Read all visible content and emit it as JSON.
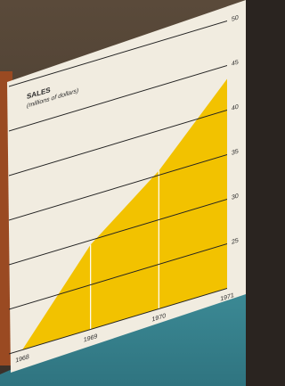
{
  "chart_data": {
    "type": "area",
    "title": "SALES",
    "subtitle": "(millions of dollars)",
    "categories": [
      "1968",
      "1969",
      "1970",
      "1971"
    ],
    "values": [
      20,
      29.5,
      35.5,
      43.5
    ],
    "color": "#f2c200",
    "ylim": [
      20,
      50
    ],
    "yticks": [
      25,
      30,
      35,
      40,
      45,
      50
    ],
    "grid": true
  }
}
